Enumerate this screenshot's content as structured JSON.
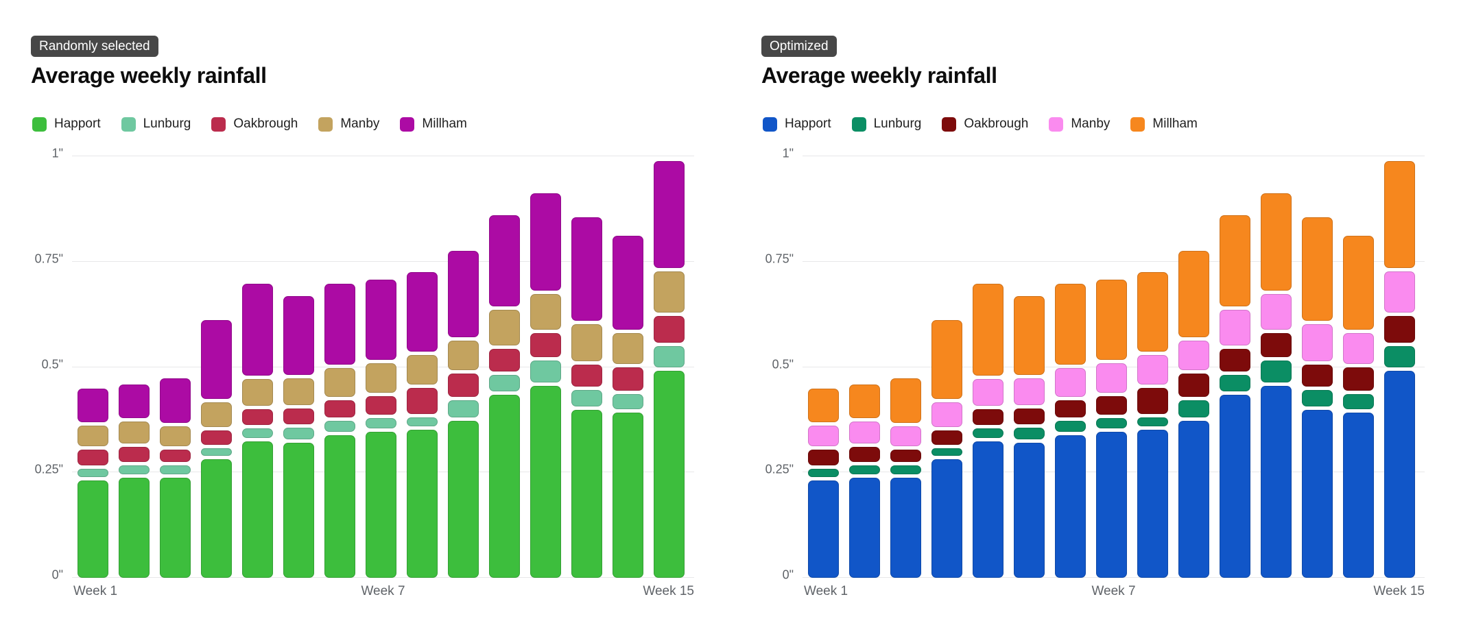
{
  "chart_data": [
    {
      "type": "bar",
      "variant": "stacked-rounded",
      "badge": "Randomly selected",
      "title": "Average weekly rainfall",
      "units": "inches",
      "ylim": [
        0,
        1
      ],
      "grid": "horizontal",
      "legend_position": "top",
      "categories": [
        "Week 1",
        "Week 2",
        "Week 3",
        "Week 4",
        "Week 5",
        "Week 6",
        "Week 7",
        "Week 8",
        "Week 9",
        "Week 10",
        "Week 11",
        "Week 12",
        "Week 13",
        "Week 14",
        "Week 15"
      ],
      "series": [
        {
          "name": "Happort",
          "color": "#3DBE3D",
          "values": [
            0.235,
            0.242,
            0.242,
            0.285,
            0.328,
            0.325,
            0.342,
            0.351,
            0.356,
            0.376,
            0.439,
            0.46,
            0.403,
            0.396,
            0.495
          ]
        },
        {
          "name": "Lunburg",
          "color": "#6FC8A0",
          "values": [
            0.028,
            0.029,
            0.029,
            0.027,
            0.031,
            0.035,
            0.034,
            0.032,
            0.029,
            0.049,
            0.047,
            0.06,
            0.047,
            0.044,
            0.058
          ]
        },
        {
          "name": "Oakbrough",
          "color": "#BB2C4D",
          "values": [
            0.045,
            0.044,
            0.037,
            0.041,
            0.045,
            0.046,
            0.049,
            0.052,
            0.07,
            0.064,
            0.061,
            0.064,
            0.06,
            0.064,
            0.073
          ]
        },
        {
          "name": "Manby",
          "color": "#C3A35F",
          "values": [
            0.057,
            0.06,
            0.055,
            0.068,
            0.071,
            0.072,
            0.076,
            0.078,
            0.077,
            0.078,
            0.093,
            0.094,
            0.096,
            0.08,
            0.105
          ]
        },
        {
          "name": "Millham",
          "color": "#AC0BA4",
          "values": [
            0.088,
            0.087,
            0.115,
            0.194,
            0.226,
            0.195,
            0.201,
            0.198,
            0.198,
            0.213,
            0.225,
            0.238,
            0.254,
            0.232,
            0.262
          ]
        }
      ],
      "y_ticks": [
        {
          "label": "0\"",
          "value": 0
        },
        {
          "label": "0.25\"",
          "value": 0.25
        },
        {
          "label": "0.5\"",
          "value": 0.5
        },
        {
          "label": "0.75\"",
          "value": 0.75
        },
        {
          "label": "1\"",
          "value": 1
        }
      ],
      "x_ticks": [
        {
          "label": "Week 1",
          "pos": "left"
        },
        {
          "label": "Week 7",
          "pos": "center"
        },
        {
          "label": "Week 15",
          "pos": "right"
        }
      ]
    },
    {
      "type": "bar",
      "variant": "stacked-rounded",
      "badge": "Optimized",
      "title": "Average weekly rainfall",
      "units": "inches",
      "ylim": [
        0,
        1
      ],
      "grid": "horizontal",
      "legend_position": "top",
      "categories": [
        "Week 1",
        "Week 2",
        "Week 3",
        "Week 4",
        "Week 5",
        "Week 6",
        "Week 7",
        "Week 8",
        "Week 9",
        "Week 10",
        "Week 11",
        "Week 12",
        "Week 13",
        "Week 14",
        "Week 15"
      ],
      "series": [
        {
          "name": "Happort",
          "color": "#1156C8",
          "values": [
            0.235,
            0.242,
            0.242,
            0.285,
            0.328,
            0.325,
            0.342,
            0.351,
            0.356,
            0.376,
            0.439,
            0.46,
            0.403,
            0.396,
            0.495
          ]
        },
        {
          "name": "Lunburg",
          "color": "#0B8E64",
          "values": [
            0.028,
            0.029,
            0.029,
            0.027,
            0.031,
            0.035,
            0.034,
            0.032,
            0.029,
            0.049,
            0.047,
            0.06,
            0.047,
            0.044,
            0.058
          ]
        },
        {
          "name": "Oakbrough",
          "color": "#7D0B0B",
          "values": [
            0.045,
            0.044,
            0.037,
            0.041,
            0.045,
            0.046,
            0.049,
            0.052,
            0.07,
            0.064,
            0.061,
            0.064,
            0.06,
            0.064,
            0.073
          ]
        },
        {
          "name": "Manby",
          "color": "#FA8BEF",
          "values": [
            0.057,
            0.06,
            0.055,
            0.068,
            0.071,
            0.072,
            0.076,
            0.078,
            0.077,
            0.078,
            0.093,
            0.094,
            0.096,
            0.08,
            0.105
          ]
        },
        {
          "name": "Millham",
          "color": "#F6871E",
          "values": [
            0.088,
            0.087,
            0.115,
            0.194,
            0.226,
            0.195,
            0.201,
            0.198,
            0.198,
            0.213,
            0.225,
            0.238,
            0.254,
            0.232,
            0.262
          ]
        }
      ],
      "y_ticks": [
        {
          "label": "0\"",
          "value": 0
        },
        {
          "label": "0.25\"",
          "value": 0.25
        },
        {
          "label": "0.5\"",
          "value": 0.5
        },
        {
          "label": "0.75\"",
          "value": 0.75
        },
        {
          "label": "1\"",
          "value": 1
        }
      ],
      "x_ticks": [
        {
          "label": "Week 1",
          "pos": "left"
        },
        {
          "label": "Week 7",
          "pos": "center"
        },
        {
          "label": "Week 15",
          "pos": "right"
        }
      ]
    }
  ]
}
